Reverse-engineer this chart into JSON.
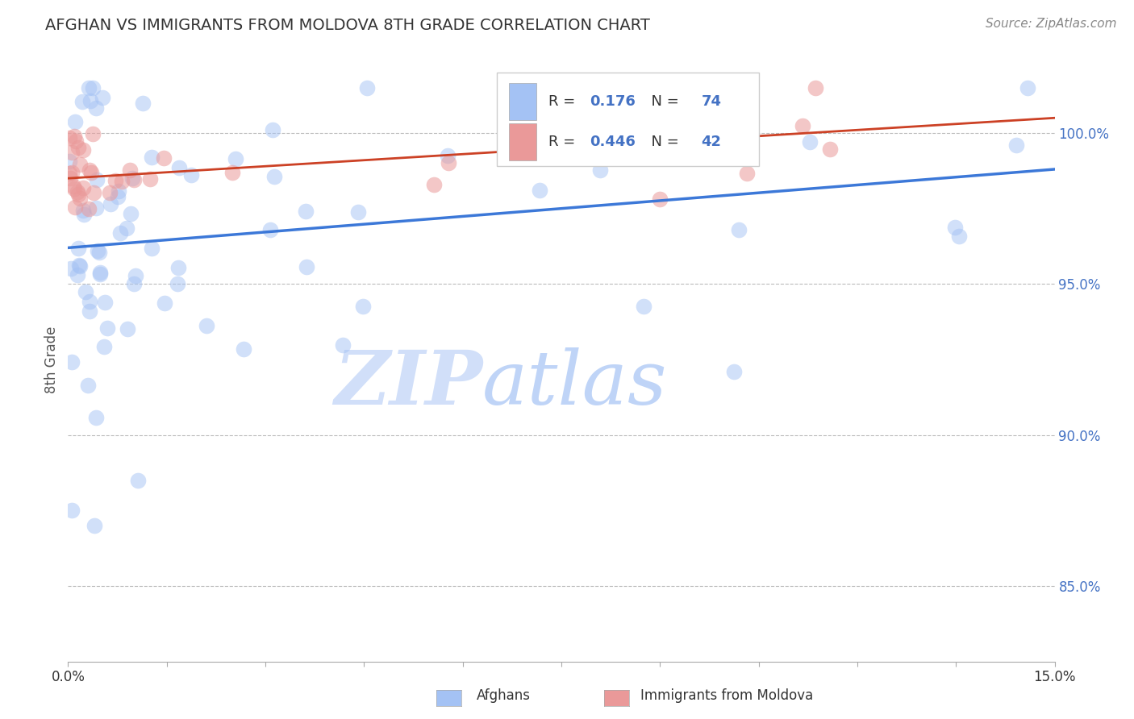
{
  "title": "AFGHAN VS IMMIGRANTS FROM MOLDOVA 8TH GRADE CORRELATION CHART",
  "source": "Source: ZipAtlas.com",
  "ylabel": "8th Grade",
  "xlim": [
    0.0,
    15.0
  ],
  "ylim": [
    82.5,
    102.5
  ],
  "yticks": [
    85.0,
    90.0,
    95.0,
    100.0
  ],
  "ytick_labels": [
    "85.0%",
    "90.0%",
    "95.0%",
    "100.0%"
  ],
  "xtick_labels_left": "0.0%",
  "xtick_labels_right": "15.0%",
  "legend_afghans": "Afghans",
  "legend_moldova": "Immigrants from Moldova",
  "R_afghan": 0.176,
  "N_afghan": 74,
  "R_moldova": 0.446,
  "N_moldova": 42,
  "afghan_color": "#a4c2f4",
  "moldova_color": "#ea9999",
  "afghan_line_color": "#3c78d8",
  "moldova_line_color": "#cc4125",
  "watermark_zip": "ZIP",
  "watermark_atlas": "atlas",
  "title_fontsize": 14,
  "source_fontsize": 11,
  "tick_fontsize": 12
}
